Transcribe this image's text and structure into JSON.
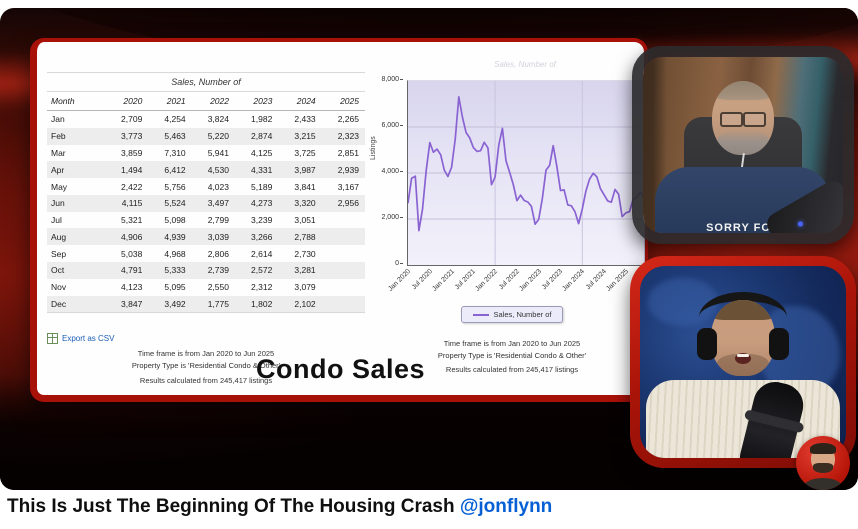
{
  "colors": {
    "accent_red": "#a81108",
    "link_blue": "#1a5db5",
    "channel_blue": "#065fd4",
    "chart_line": "#8a63d2",
    "chart_plot_bg": "#e6e4f5",
    "legend_bg": "#ecebfa"
  },
  "screenshare": {
    "table": {
      "title": "Sales, Number of",
      "columns": [
        "Month",
        "2020",
        "2021",
        "2022",
        "2023",
        "2024",
        "2025"
      ],
      "rows": [
        [
          "Jan",
          "2,709",
          "4,254",
          "3,824",
          "1,982",
          "2,433",
          "2,265"
        ],
        [
          "Feb",
          "3,773",
          "5,463",
          "5,220",
          "2,874",
          "3,215",
          "2,323"
        ],
        [
          "Mar",
          "3,859",
          "7,310",
          "5,941",
          "4,125",
          "3,725",
          "2,851"
        ],
        [
          "Apr",
          "1,494",
          "6,412",
          "4,530",
          "4,331",
          "3,987",
          "2,939"
        ],
        [
          "May",
          "2,422",
          "5,756",
          "4,023",
          "5,189",
          "3,841",
          "3,167"
        ],
        [
          "Jun",
          "4,115",
          "5,524",
          "3,497",
          "4,273",
          "3,320",
          "2,956"
        ],
        [
          "Jul",
          "5,321",
          "5,098",
          "2,799",
          "3,239",
          "3,051",
          ""
        ],
        [
          "Aug",
          "4,906",
          "4,939",
          "3,039",
          "3,266",
          "2,788",
          ""
        ],
        [
          "Sep",
          "5,038",
          "4,968",
          "2,806",
          "2,614",
          "2,730",
          ""
        ],
        [
          "Oct",
          "4,791",
          "5,333",
          "2,739",
          "2,572",
          "3,281",
          ""
        ],
        [
          "Nov",
          "4,123",
          "5,095",
          "2,550",
          "2,312",
          "3,079",
          ""
        ],
        [
          "Dec",
          "3,847",
          "3,492",
          "1,775",
          "1,802",
          "2,102",
          ""
        ]
      ],
      "export_label": "Export as CSV"
    },
    "notes": [
      "Time frame is from Jan 2020 to Jun 2025",
      "Property Type is 'Residential Condo & Other'",
      "Results calculated from 245,417 listings"
    ],
    "caption": "Condo Sales"
  },
  "chart_data": {
    "type": "line",
    "title": "Sales, Number of",
    "ylabel": "Listings",
    "ylim": [
      0,
      8000
    ],
    "y_ticks": [
      0,
      2000,
      4000,
      6000,
      8000
    ],
    "y_tick_labels": [
      "0",
      "2,000",
      "4,000",
      "6,000",
      "8,000"
    ],
    "x_start": "Jan 2020",
    "x_end": "Jun 2025",
    "x_tick_labels": [
      "Jan 2020",
      "Jul 2020",
      "Jan 2021",
      "Jul 2021",
      "Jan 2022",
      "Jul 2022",
      "Jan 2023",
      "Jul 2023",
      "Jan 2024",
      "Jul 2024",
      "Jan 2025"
    ],
    "x_tick_month_index": [
      0,
      6,
      12,
      18,
      24,
      30,
      36,
      42,
      48,
      54,
      60
    ],
    "grid_vertical_month_index": [
      24,
      48
    ],
    "grid": true,
    "legend": {
      "label": "Sales, Number of",
      "position": "bottom"
    },
    "series": [
      {
        "name": "Sales, Number of",
        "color": "#8a63d2",
        "values": [
          2709,
          3773,
          3859,
          1494,
          2422,
          4115,
          5321,
          4906,
          5038,
          4791,
          4123,
          3847,
          4254,
          5463,
          7310,
          6412,
          5756,
          5524,
          5098,
          4939,
          4968,
          5333,
          5095,
          3492,
          3824,
          5220,
          5941,
          4530,
          4023,
          3497,
          2799,
          3039,
          2806,
          2739,
          2550,
          1775,
          1982,
          2874,
          4125,
          4331,
          5189,
          4273,
          3239,
          3266,
          2614,
          2572,
          2312,
          1802,
          2433,
          3215,
          3725,
          3987,
          3841,
          3320,
          3051,
          2788,
          2730,
          3281,
          3079,
          2102,
          2265,
          2323,
          2851,
          2939,
          3167,
          2956
        ]
      }
    ]
  },
  "webcam": {
    "shirt_text": "SORRY FOR"
  },
  "title_bar": {
    "title": "This Is Just The Beginning Of The Housing Crash",
    "channel": "@jonflynn"
  }
}
